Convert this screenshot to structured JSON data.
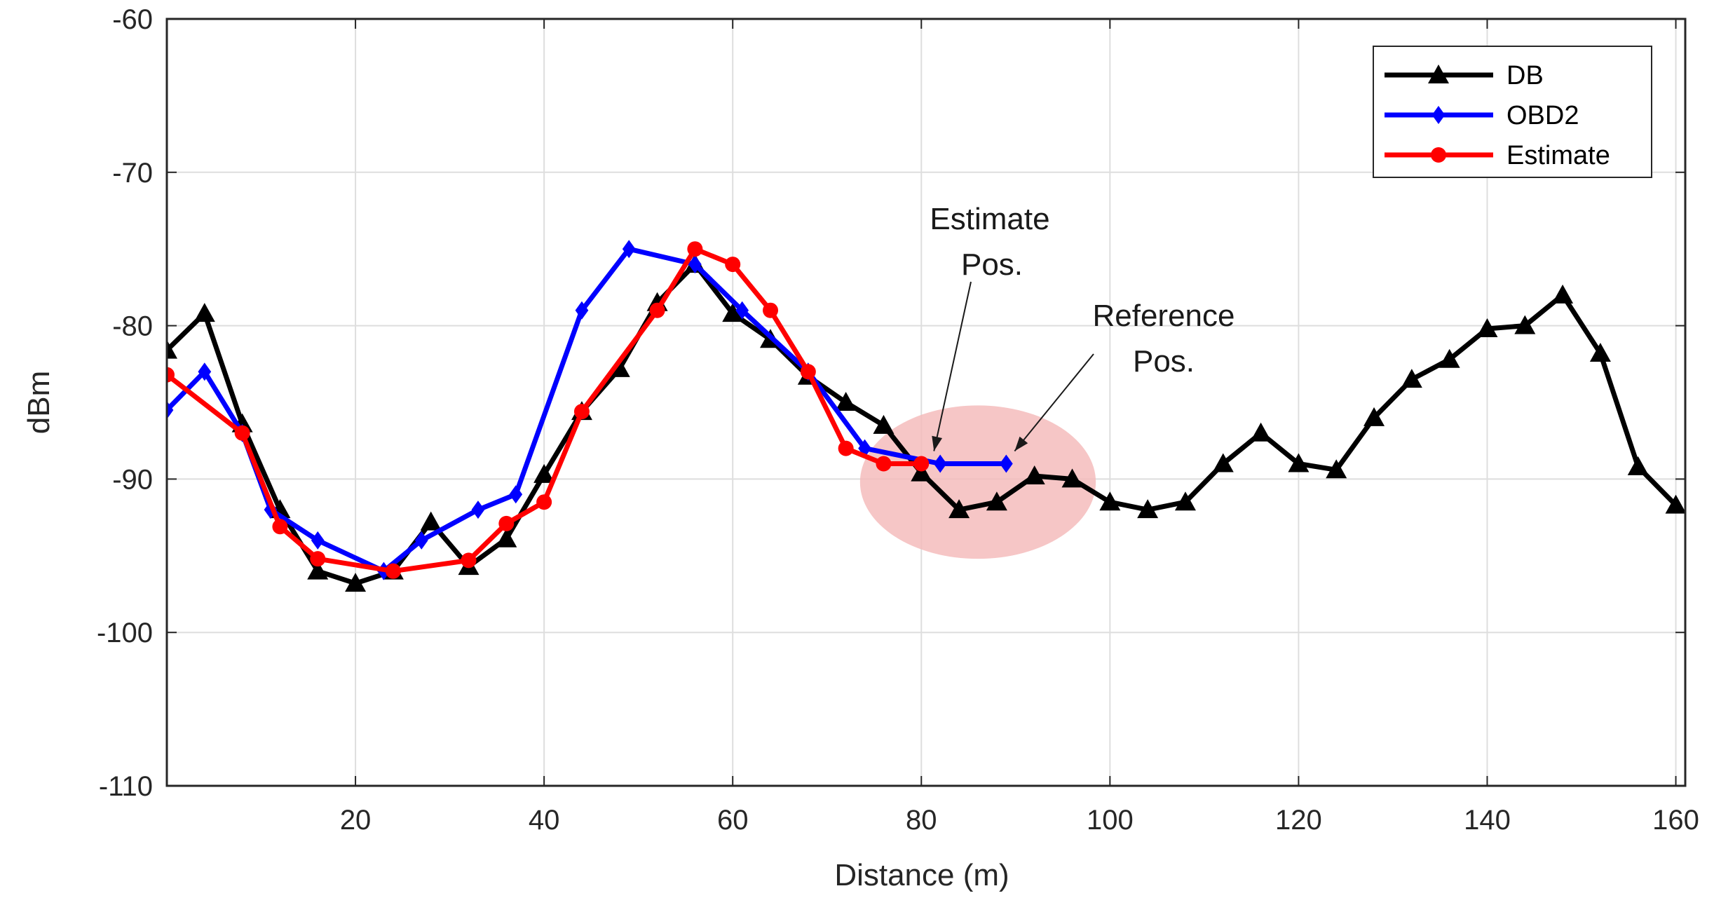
{
  "chart_data": {
    "type": "line",
    "title": "",
    "xlabel": "Distance (m)",
    "ylabel": "dBm",
    "xlim": [
      0,
      161
    ],
    "ylim": [
      -110,
      -60
    ],
    "xticks": [
      20,
      40,
      60,
      80,
      100,
      120,
      140,
      160
    ],
    "yticks": [
      -60,
      -70,
      -80,
      -90,
      -100,
      -110
    ],
    "grid": true,
    "legend_position": "top-right",
    "series": [
      {
        "name": "DB",
        "color": "#000000",
        "marker": "triangle",
        "x": [
          0,
          4,
          8,
          12,
          16,
          20,
          24,
          28,
          32,
          36,
          40,
          44,
          48,
          52,
          56,
          60,
          64,
          68,
          72,
          76,
          80,
          84,
          88,
          92,
          96,
          100,
          104,
          108,
          112,
          116,
          120,
          124,
          128,
          132,
          136,
          140,
          144,
          148,
          152,
          156,
          160
        ],
        "y": [
          -81.6,
          -79.2,
          -86.4,
          -92.0,
          -96.0,
          -96.8,
          -96.0,
          -92.8,
          -95.7,
          -93.9,
          -89.7,
          -85.6,
          -82.8,
          -78.5,
          -76.0,
          -79.2,
          -80.9,
          -83.3,
          -85.0,
          -86.5,
          -89.6,
          -92.0,
          -91.5,
          -89.8,
          -90.0,
          -91.5,
          -92.0,
          -91.5,
          -89.0,
          -87.0,
          -89.0,
          -89.4,
          -86.0,
          -83.5,
          -82.2,
          -80.2,
          -80.0,
          -78.0,
          -81.8,
          -89.2,
          -91.7
        ]
      },
      {
        "name": "OBD2",
        "color": "#0000ff",
        "marker": "diamond",
        "x": [
          0,
          4,
          8,
          11,
          16,
          23,
          27,
          33,
          37,
          44,
          49,
          56,
          61,
          68,
          74,
          82,
          89
        ],
        "y": [
          -85.5,
          -83.0,
          -87.0,
          -92.0,
          -94.0,
          -96.0,
          -94.0,
          -92.0,
          -91.0,
          -79.0,
          -75.0,
          -76.0,
          -79.0,
          -83.0,
          -88.0,
          -89.0,
          -89.0
        ]
      },
      {
        "name": "Estimate",
        "color": "#ff0000",
        "marker": "circle",
        "x": [
          0,
          8,
          12,
          16,
          24,
          32,
          36,
          40,
          44,
          52,
          56,
          60,
          64,
          68,
          72,
          76,
          80
        ],
        "y": [
          -83.2,
          -87.0,
          -93.1,
          -95.2,
          -96.0,
          -95.3,
          -92.9,
          -91.5,
          -85.6,
          -79.0,
          -75.0,
          -76.0,
          -79.0,
          -83.0,
          -88.0,
          -89.0,
          -89.0
        ]
      }
    ],
    "annotations": [
      {
        "lines": [
          "Estimate",
          "Pos."
        ],
        "target_x": 80,
        "target_y": -89.0
      },
      {
        "lines": [
          "Reference",
          "Pos."
        ],
        "target_x": 89,
        "target_y": -89.0
      }
    ],
    "highlight": {
      "cx": 86,
      "cy": -90.2,
      "rx": 12.5,
      "ry": 5.0,
      "color": "#f4b8b8"
    }
  }
}
